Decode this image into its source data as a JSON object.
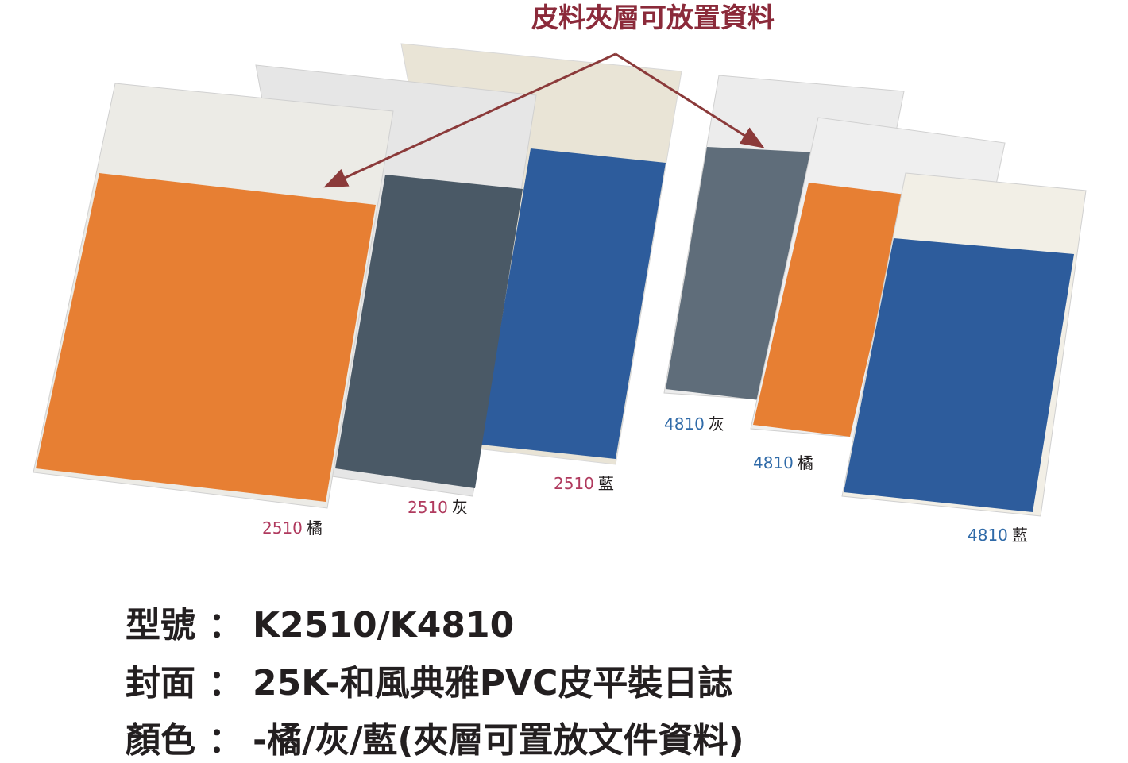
{
  "callout": "皮料夾層可放置資料",
  "products": [
    {
      "model": "2510",
      "color": "橘"
    },
    {
      "model": "2510",
      "color": "灰"
    },
    {
      "model": "2510",
      "color": "藍"
    },
    {
      "model": "4810",
      "color": "灰"
    },
    {
      "model": "4810",
      "color": "橘"
    },
    {
      "model": "4810",
      "color": "藍"
    }
  ],
  "specs": [
    {
      "label": "型號",
      "colon": "：",
      "value": "K2510/K4810"
    },
    {
      "label": "封面",
      "colon": "：",
      "value": "25K-和風典雅PVC皮平裝日誌"
    },
    {
      "label": "顏色",
      "colon": "：",
      "value": "-橘/灰/藍(夾層可置放文件資料)"
    }
  ]
}
